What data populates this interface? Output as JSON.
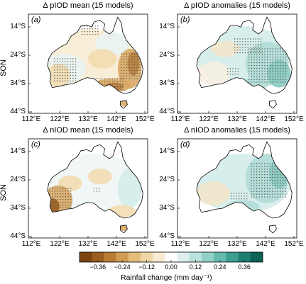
{
  "panels": [
    {
      "letter": "(a)",
      "title": "Δ pIOD mean (15 models)",
      "show_season": true,
      "pattern": "pmean"
    },
    {
      "letter": "(b)",
      "title": "Δ pIOD anomalies (15 models)",
      "show_season": false,
      "pattern": "panom"
    },
    {
      "letter": "(c)",
      "title": "Δ nIOD mean (15 models)",
      "show_season": true,
      "pattern": "nmean"
    },
    {
      "letter": "(d)",
      "title": "Δ nIOD anomalies (15 models)",
      "show_season": false,
      "pattern": "nanom"
    }
  ],
  "season_label": "SON",
  "lat_labels": [
    "14°S",
    "24°S",
    "34°S",
    "44°S"
  ],
  "lon_labels": [
    "112°E",
    "122°E",
    "132°E",
    "142°E",
    "152°E"
  ],
  "colorbar": {
    "ticks": [
      "−0.36",
      "−0.24",
      "−0.12",
      "0.00",
      "0.12",
      "0.24",
      "0.36"
    ],
    "label": "Rainfall change (mm day⁻¹)",
    "colors": [
      "#7a4510",
      "#9c5e1e",
      "#b97c34",
      "#d19d55",
      "#e3bd7c",
      "#efd6a4",
      "#f7ebd3",
      "#ffffff",
      "#dcefee",
      "#b9e2dd",
      "#91cfc7",
      "#66b9ad",
      "#3c9d90",
      "#1e7f71",
      "#0f6257"
    ]
  }
}
